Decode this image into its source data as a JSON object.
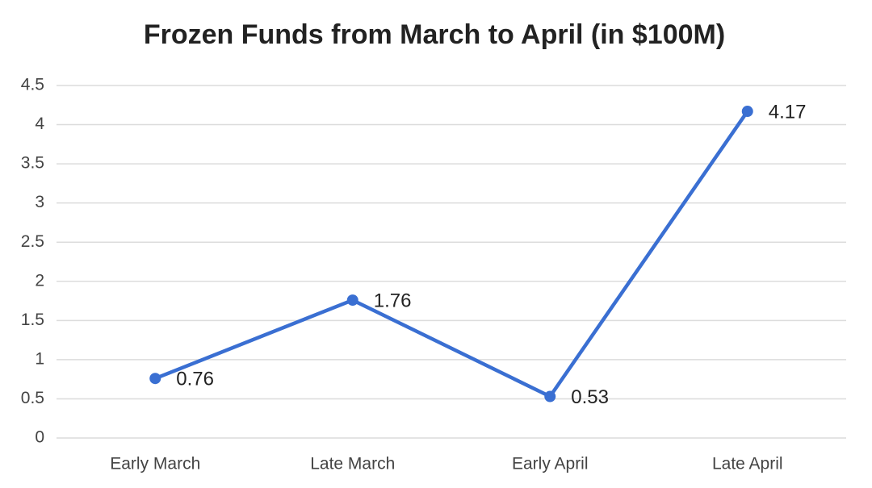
{
  "chart_data": {
    "type": "line",
    "title": "Frozen Funds from March to April (in $100M)",
    "categories": [
      "Early March",
      "Late March",
      "Early April",
      "Late April"
    ],
    "values": [
      0.76,
      1.76,
      0.53,
      4.17
    ],
    "color": "#3a6fd2",
    "ylim": [
      0,
      4.5
    ],
    "yticks": [
      0,
      0.5,
      1,
      1.5,
      2,
      2.5,
      3,
      3.5,
      4,
      4.5
    ],
    "grid": true
  }
}
